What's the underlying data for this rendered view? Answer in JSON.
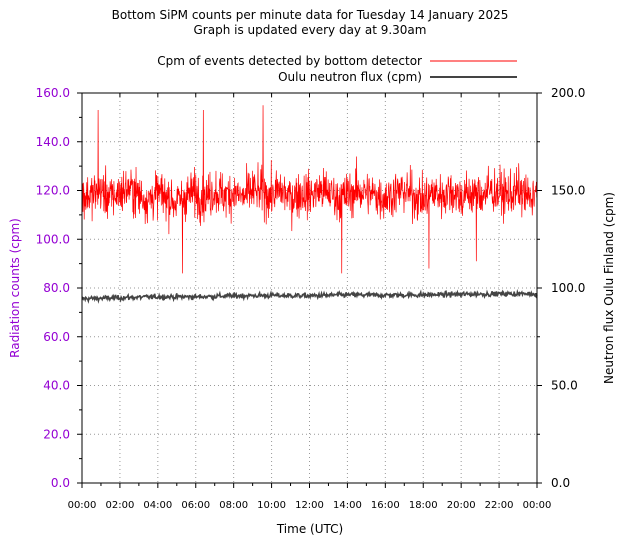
{
  "chart_data": {
    "type": "line",
    "title": "Bottom SiPM counts per minute data for Tuesday 14 January 2025",
    "subtitle": "Graph is updated every day at 9.30am",
    "xlabel": "Time (UTC)",
    "ylabel_left": "Radiation counts (cpm)",
    "ylabel_right": "Neutron flux Oulu Finland (cpm)",
    "x_ticks": [
      "00:00",
      "02:00",
      "04:00",
      "06:00",
      "08:00",
      "10:00",
      "12:00",
      "14:00",
      "16:00",
      "18:00",
      "20:00",
      "22:00",
      "00:00"
    ],
    "xlim_hours": [
      0,
      24
    ],
    "ylim_left": [
      0,
      160
    ],
    "ylim_right": [
      0,
      200
    ],
    "y_ticks_left": [
      "0.0",
      "20.0",
      "40.0",
      "60.0",
      "80.0",
      "100.0",
      "120.0",
      "140.0",
      "160.0"
    ],
    "y_ticks_right": [
      "0.0",
      "50.0",
      "100.0",
      "150.0",
      "200.0"
    ],
    "grid": true,
    "legend_position": "top-right",
    "colors": {
      "detector": "#ff0000",
      "neutron": "#444444",
      "left_axis_text": "#9400d3"
    },
    "series": [
      {
        "name": "Cpm of events detected by bottom detector",
        "axis": "left",
        "x_hours": [
          0.5,
          1.0,
          1.5,
          2.0,
          2.5,
          3.0,
          3.5,
          4.0,
          4.5,
          5.0,
          5.5,
          6.0,
          6.5,
          7.0,
          7.5,
          8.0,
          8.5,
          9.0,
          9.5,
          10.0,
          10.5,
          11.0,
          11.5,
          12.0,
          12.5,
          13.0,
          13.5,
          14.0,
          14.5,
          15.0,
          15.5,
          16.0,
          16.5,
          17.0,
          17.5,
          18.0,
          18.5,
          19.0,
          19.5,
          20.0,
          20.5,
          21.0,
          21.5,
          22.0,
          22.5,
          23.0,
          23.5,
          24.0
        ],
        "values": [
          118,
          120,
          117,
          119,
          121,
          118,
          116,
          119,
          117,
          115,
          118,
          119,
          117,
          120,
          118,
          119,
          117,
          120,
          119,
          118,
          120,
          117,
          119,
          118,
          120,
          119,
          117,
          118,
          120,
          119,
          118,
          117,
          119,
          120,
          118,
          116,
          119,
          118,
          120,
          117,
          119,
          118,
          120,
          119,
          118,
          120,
          117,
          118
        ],
        "typical_range": [
          100,
          135
        ],
        "peaks": [
          {
            "x_hours": 0.85,
            "value": 153
          },
          {
            "x_hours": 6.4,
            "value": 153
          },
          {
            "x_hours": 9.55,
            "value": 155
          },
          {
            "x_hours": 23.8,
            "value": 124
          }
        ],
        "troughs": [
          {
            "x_hours": 5.3,
            "value": 86
          },
          {
            "x_hours": 13.7,
            "value": 86
          },
          {
            "x_hours": 18.3,
            "value": 88
          },
          {
            "x_hours": 20.8,
            "value": 91
          }
        ]
      },
      {
        "name": "Oulu neutron flux (cpm)",
        "axis": "right",
        "x_hours": [
          0.0,
          2.0,
          4.0,
          6.0,
          8.0,
          10.0,
          12.0,
          14.0,
          16.0,
          18.0,
          20.0,
          22.0,
          24.0
        ],
        "values": [
          94.5,
          95.0,
          95.5,
          95.5,
          96.0,
          96.2,
          96.0,
          96.5,
          96.3,
          96.5,
          96.8,
          97.0,
          97.0
        ]
      }
    ]
  }
}
